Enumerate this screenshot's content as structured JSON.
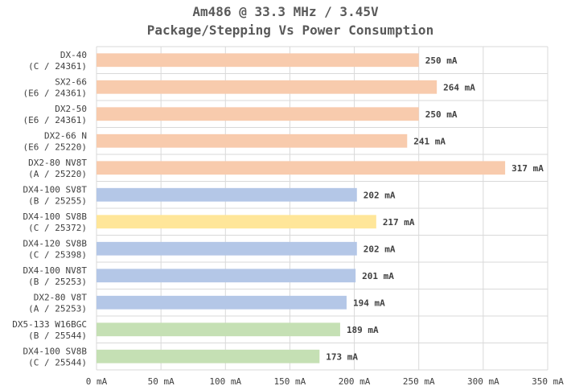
{
  "chart_data": {
    "type": "bar",
    "orientation": "horizontal",
    "title": "Am486 @ 33.3 MHz / 3.45V",
    "subtitle": "Package/Stepping Vs Power Consumption",
    "categories": [
      [
        "DX-40",
        "(C / 24361)"
      ],
      [
        "SX2-66",
        "(E6 / 24361)"
      ],
      [
        "DX2-50",
        "(E6 / 24361)"
      ],
      [
        "DX2-66 N",
        "(E6 / 25220)"
      ],
      [
        "DX2-80 NV8T",
        "(A / 25220)"
      ],
      [
        "DX4-100 SV8T",
        "(B / 25255)"
      ],
      [
        "DX4-100 SV8B",
        "(C / 25372)"
      ],
      [
        "DX4-120 SV8B",
        "(C / 25398)"
      ],
      [
        "DX4-100 NV8T",
        "(B / 25253)"
      ],
      [
        "DX2-80 V8T",
        "(A / 25253)"
      ],
      [
        "DX5-133 W16BGC",
        "(B / 25544)"
      ],
      [
        "DX4-100 SV8B",
        "(C / 25544)"
      ]
    ],
    "values": [
      250,
      264,
      250,
      241,
      317,
      202,
      217,
      202,
      201,
      194,
      189,
      173
    ],
    "value_labels": [
      "250 mA",
      "264 mA",
      "250 mA",
      "241 mA",
      "317 mA",
      "202 mA",
      "217 mA",
      "202 mA",
      "201 mA",
      "194 mA",
      "189 mA",
      "173 mA"
    ],
    "bar_colors": [
      "#f8cbad",
      "#f8cbad",
      "#f8cbad",
      "#f8cbad",
      "#f8cbad",
      "#b4c7e7",
      "#ffe699",
      "#b4c7e7",
      "#b4c7e7",
      "#b4c7e7",
      "#c5e0b4",
      "#c5e0b4"
    ],
    "xlim": [
      0,
      350
    ],
    "xticks": [
      0,
      50,
      100,
      150,
      200,
      250,
      300,
      350
    ],
    "xtick_labels": [
      "0 mA",
      "50 mA",
      "100 mA",
      "150 mA",
      "200 mA",
      "250 mA",
      "300 mA",
      "350 mA"
    ],
    "grid": true
  }
}
